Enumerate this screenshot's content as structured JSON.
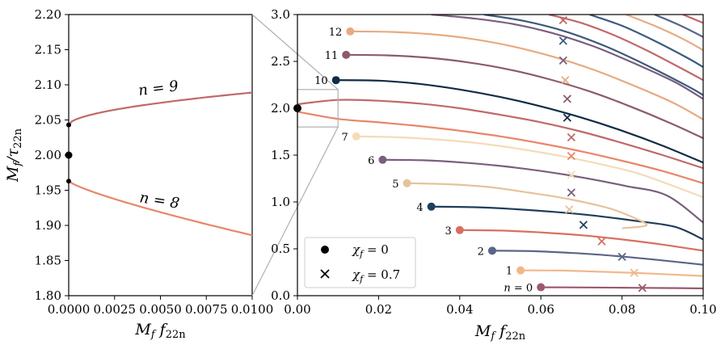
{
  "chart_data": [
    {
      "id": "left",
      "type": "line",
      "xlabel": "M_f f_22n",
      "ylabel": "M_f / τ_22n",
      "xlim": [
        0.0,
        0.01
      ],
      "ylim": [
        1.8,
        2.2
      ],
      "xticks": [
        "0.0000",
        "0.0025",
        "0.0050",
        "0.0075",
        "0.0100"
      ],
      "yticks": [
        "1.80",
        "1.85",
        "1.90",
        "1.95",
        "2.00",
        "2.05",
        "2.10",
        "2.15",
        "2.20"
      ],
      "series": [
        {
          "n": 9,
          "label": "n = 9",
          "color": "#c0696a",
          "x": [
            0,
            0.002,
            0.004,
            0.006,
            0.008,
            0.01
          ],
          "y": [
            2.043,
            2.062,
            2.073,
            2.081,
            2.086,
            2.089
          ]
        },
        {
          "n": 8,
          "label": "n = 8",
          "color": "#e8866a",
          "x": [
            0,
            0.002,
            0.004,
            0.006,
            0.008,
            0.01
          ],
          "y": [
            1.963,
            1.943,
            1.926,
            1.911,
            1.898,
            1.886
          ]
        }
      ],
      "points": [
        {
          "x": 0,
          "y": 2.043
        },
        {
          "x": 0,
          "y": 2.0
        },
        {
          "x": 0,
          "y": 1.963
        }
      ],
      "grid": false
    },
    {
      "id": "right",
      "type": "line",
      "xlabel": "M_f f_22n",
      "ylabel": "",
      "xlim": [
        0.0,
        0.1
      ],
      "ylim": [
        0.0,
        3.0
      ],
      "xticks": [
        "0.00",
        "0.02",
        "0.04",
        "0.06",
        "0.08",
        "0.10"
      ],
      "yticks": [
        "0.0",
        "0.5",
        "1.0",
        "1.5",
        "2.0",
        "2.5",
        "3.0"
      ],
      "legend": {
        "placement": "lower-left",
        "entries": [
          "χ_f = 0",
          "χ_f = 0.7"
        ]
      },
      "zoom_box": {
        "x": [
          0.0,
          0.01
        ],
        "y": [
          1.8,
          2.2
        ]
      },
      "grid": false,
      "series": [
        {
          "n": 0,
          "label": "n = 0",
          "color": "#9b5a6c",
          "x": [
            0.06,
            0.07,
            0.08,
            0.09,
            0.1
          ],
          "y": [
            0.09,
            0.088,
            0.085,
            0.082,
            0.078
          ],
          "start": [
            0.06,
            0.09
          ],
          "cross": [
            0.085,
            0.083
          ]
        },
        {
          "n": 1,
          "label": "1",
          "color": "#f0b88a",
          "x": [
            0.055,
            0.065,
            0.075,
            0.085,
            0.1
          ],
          "y": [
            0.27,
            0.268,
            0.255,
            0.24,
            0.21
          ],
          "start": [
            0.055,
            0.27
          ],
          "cross": [
            0.083,
            0.245
          ]
        },
        {
          "n": 2,
          "label": "2",
          "color": "#5a6688",
          "x": [
            0.048,
            0.058,
            0.068,
            0.078,
            0.088,
            0.1
          ],
          "y": [
            0.48,
            0.475,
            0.455,
            0.425,
            0.385,
            0.33
          ],
          "start": [
            0.048,
            0.48
          ],
          "cross": [
            0.08,
            0.415
          ]
        },
        {
          "n": 3,
          "label": "3",
          "color": "#d87060",
          "x": [
            0.04,
            0.05,
            0.06,
            0.07,
            0.08,
            0.09,
            0.1
          ],
          "y": [
            0.7,
            0.695,
            0.675,
            0.645,
            0.6,
            0.545,
            0.48
          ],
          "start": [
            0.04,
            0.7
          ],
          "cross": [
            0.075,
            0.58
          ]
        },
        {
          "n": 4,
          "label": "4",
          "color": "#1f3d5c",
          "x": [
            0.033,
            0.043,
            0.053,
            0.063,
            0.073,
            0.083,
            0.093,
            0.1
          ],
          "y": [
            0.95,
            0.945,
            0.925,
            0.895,
            0.855,
            0.8,
            0.735,
            0.6
          ],
          "start": [
            0.033,
            0.95
          ],
          "cross": [
            0.0705,
            0.755
          ]
        },
        {
          "n": 5,
          "label": "5",
          "color": "#e6c39a",
          "x": [
            0.027,
            0.037,
            0.047,
            0.057,
            0.067,
            0.077,
            0.083,
            0.086,
            0.08
          ],
          "y": [
            1.2,
            1.19,
            1.16,
            1.1,
            1.03,
            0.93,
            0.83,
            0.75,
            0.72
          ],
          "start": [
            0.027,
            1.2
          ],
          "cross": [
            0.067,
            0.92
          ]
        },
        {
          "n": 6,
          "label": "6",
          "color": "#7a5e7e",
          "x": [
            0.021,
            0.031,
            0.041,
            0.051,
            0.061,
            0.071,
            0.081,
            0.091,
            0.1
          ],
          "y": [
            1.45,
            1.445,
            1.42,
            1.38,
            1.325,
            1.255,
            1.17,
            1.07,
            0.78
          ],
          "start": [
            0.021,
            1.45
          ],
          "cross": [
            0.0675,
            1.1
          ]
        },
        {
          "n": 7,
          "label": "7",
          "color": "#f3dcb8",
          "x": [
            0.0145,
            0.025,
            0.035,
            0.045,
            0.055,
            0.065,
            0.075,
            0.085,
            0.1
          ],
          "y": [
            1.7,
            1.69,
            1.665,
            1.625,
            1.565,
            1.49,
            1.4,
            1.29,
            1.05
          ],
          "start": [
            0.0145,
            1.7
          ],
          "cross": [
            0.0675,
            1.29
          ]
        },
        {
          "n": 8,
          "label": "8",
          "color": "#e8866a",
          "x": [
            0.0,
            0.01,
            0.02,
            0.03,
            0.04,
            0.05,
            0.06,
            0.07,
            0.08,
            0.09,
            0.1
          ],
          "y": [
            1.963,
            1.886,
            1.85,
            1.81,
            1.76,
            1.7,
            1.625,
            1.54,
            1.44,
            1.33,
            1.2
          ],
          "start": null,
          "cross": [
            0.0675,
            1.49
          ]
        },
        {
          "n": 9,
          "label": "9",
          "color": "#c0696a",
          "x": [
            0.0,
            0.01,
            0.02,
            0.03,
            0.04,
            0.05,
            0.06,
            0.07,
            0.08,
            0.09,
            0.1
          ],
          "y": [
            2.043,
            2.089,
            2.08,
            2.05,
            2.0,
            1.93,
            1.85,
            1.75,
            1.63,
            1.5,
            1.36
          ],
          "start": null,
          "cross": [
            0.0675,
            1.69
          ]
        },
        {
          "n": 10,
          "label": "10",
          "color": "#122c46",
          "x": [
            0.0095,
            0.02,
            0.03,
            0.04,
            0.05,
            0.06,
            0.07,
            0.08,
            0.09,
            0.1
          ],
          "y": [
            2.3,
            2.295,
            2.26,
            2.2,
            2.12,
            2.02,
            1.9,
            1.76,
            1.6,
            1.42
          ],
          "start": [
            0.0095,
            2.3
          ],
          "cross": [
            0.0665,
            1.9
          ]
        },
        {
          "n": 11,
          "label": "11",
          "color": "#8c5a6e",
          "x": [
            0.012,
            0.022,
            0.032,
            0.042,
            0.052,
            0.062,
            0.072,
            0.082,
            0.092,
            0.1
          ],
          "y": [
            2.57,
            2.565,
            2.54,
            2.49,
            2.415,
            2.31,
            2.18,
            2.02,
            1.84,
            1.68
          ],
          "start": [
            0.012,
            2.57
          ],
          "cross": [
            0.0665,
            2.1
          ]
        },
        {
          "n": 12,
          "label": "12",
          "color": "#e8aa80",
          "x": [
            0.013,
            0.023,
            0.033,
            0.043,
            0.053,
            0.063,
            0.073,
            0.083,
            0.093,
            0.1
          ],
          "y": [
            2.82,
            2.815,
            2.79,
            2.74,
            2.66,
            2.55,
            2.41,
            2.24,
            2.05,
            1.88
          ],
          "start": [
            0.013,
            2.82
          ],
          "cross": [
            0.066,
            2.3
          ]
        },
        {
          "n": 13,
          "label": "",
          "color": "#7a5e7e",
          "x": [
            0.033,
            0.043,
            0.053,
            0.063,
            0.073,
            0.083,
            0.093,
            0.1
          ],
          "y": [
            3.0,
            2.96,
            2.9,
            2.8,
            2.66,
            2.48,
            2.28,
            2.1
          ],
          "start": null,
          "cross": [
            0.0655,
            2.51
          ]
        },
        {
          "n": 14,
          "label": "",
          "color": "#3d5a7c",
          "x": [
            0.046,
            0.056,
            0.066,
            0.076,
            0.086,
            0.096,
            0.1
          ],
          "y": [
            3.0,
            2.93,
            2.82,
            2.66,
            2.46,
            2.24,
            2.14
          ],
          "start": null,
          "cross": [
            0.0655,
            2.72
          ]
        },
        {
          "n": 15,
          "label": "",
          "color": "#c0696a",
          "x": [
            0.062,
            0.07,
            0.078,
            0.086,
            0.094,
            0.1
          ],
          "y": [
            3.0,
            2.91,
            2.78,
            2.62,
            2.44,
            2.3
          ],
          "start": null,
          "cross": [
            0.0655,
            2.94
          ]
        },
        {
          "n": 16,
          "label": "",
          "color": "#3d5a7c",
          "x": [
            0.072,
            0.08,
            0.088,
            0.096,
            0.1
          ],
          "y": [
            3.0,
            2.88,
            2.72,
            2.54,
            2.44
          ],
          "start": null,
          "cross": null
        },
        {
          "n": 17,
          "label": "",
          "color": "#e8aa80",
          "x": [
            0.081,
            0.088,
            0.095,
            0.1
          ],
          "y": [
            3.0,
            2.88,
            2.74,
            2.62
          ],
          "start": null,
          "cross": null
        },
        {
          "n": 18,
          "label": "",
          "color": "#5a6688",
          "x": [
            0.088,
            0.094,
            0.1
          ],
          "y": [
            3.0,
            2.89,
            2.76
          ],
          "start": null,
          "cross": null
        },
        {
          "n": 19,
          "label": "",
          "color": "#c0696a",
          "x": [
            0.095,
            0.1
          ],
          "y": [
            3.0,
            2.91
          ],
          "start": null,
          "cross": null
        }
      ],
      "extra_points": [
        {
          "x": 0.0,
          "y": 2.0
        }
      ],
      "label_prefix_n0": "n = 0"
    }
  ]
}
